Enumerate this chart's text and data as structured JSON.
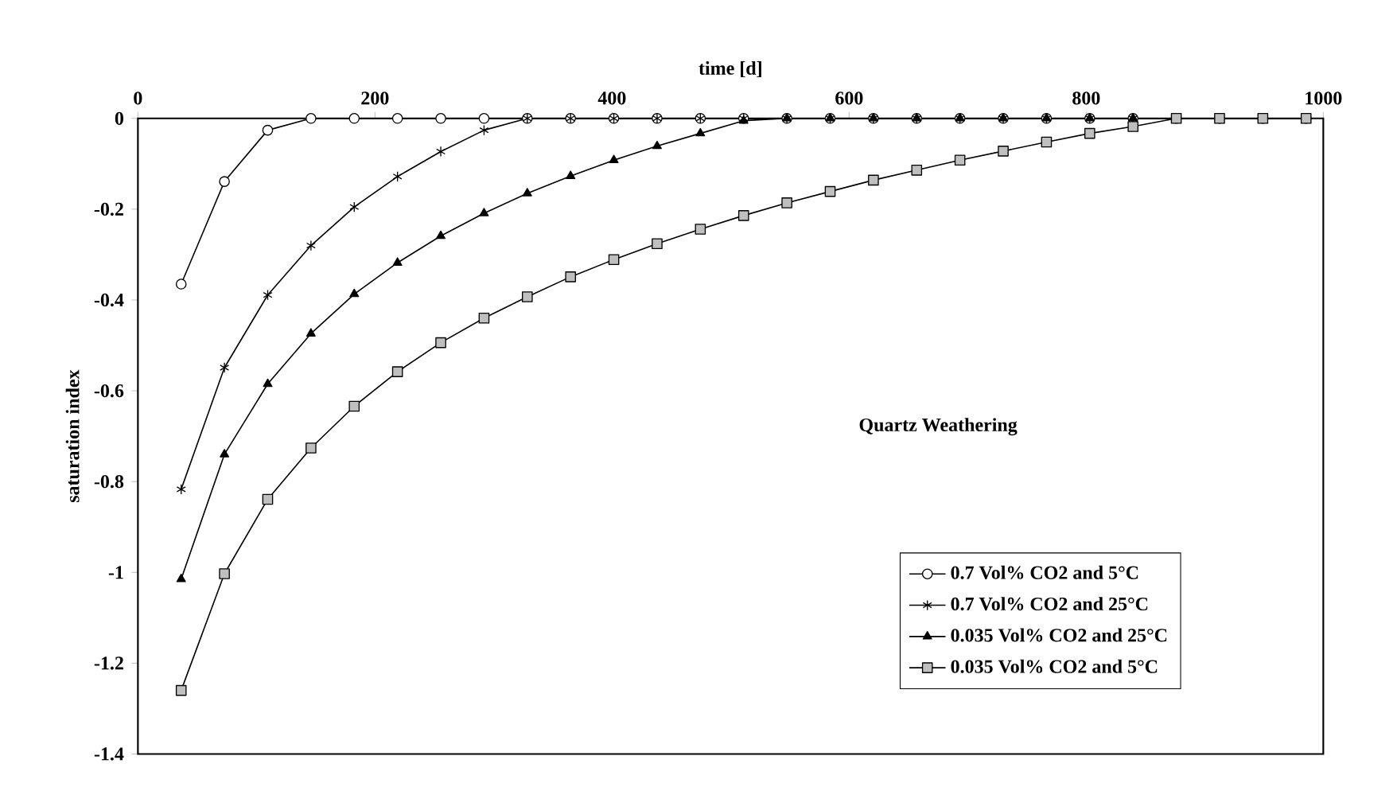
{
  "chart_data": {
    "type": "line",
    "xlabel": "time [d]",
    "ylabel": "saturation index",
    "annotations": [
      "Quartz Weathering"
    ],
    "x": [
      36.5,
      73,
      109.5,
      146,
      182.5,
      219,
      255.5,
      292,
      328.5,
      365,
      401.5,
      438,
      474.5,
      511,
      547.5,
      584,
      620.5,
      657,
      693.5,
      730,
      766.5,
      803,
      839.5,
      876,
      912.5,
      949,
      985.5
    ],
    "series": [
      {
        "name": "0.7 Vol% CO2 and 5°C",
        "color": "#000000",
        "marker": "circle",
        "values": [
          -0.365,
          -0.139,
          -0.026,
          0,
          0,
          0,
          0,
          0,
          0,
          0,
          0,
          0,
          0,
          0,
          0,
          0,
          0,
          0,
          0,
          0,
          0,
          0,
          0,
          0,
          0,
          0,
          0
        ]
      },
      {
        "name": "0.7 Vol% CO2 and 25°C",
        "color": "#000000",
        "marker": "cross",
        "values": [
          -0.817,
          -0.549,
          -0.389,
          -0.28,
          -0.195,
          -0.128,
          -0.073,
          -0.026,
          0,
          0,
          0,
          0,
          0,
          0,
          0,
          0,
          0,
          0,
          0,
          0,
          0,
          0,
          0,
          0,
          0,
          0,
          0
        ]
      },
      {
        "name": "0.035 Vol% CO2 and 25°C",
        "color": "#000000",
        "marker": "triangle",
        "values": [
          -1.015,
          -0.74,
          -0.585,
          -0.474,
          -0.387,
          -0.318,
          -0.259,
          -0.209,
          -0.165,
          -0.127,
          -0.092,
          -0.061,
          -0.033,
          -0.005,
          0,
          0,
          0,
          0,
          0,
          0,
          0,
          0,
          0,
          0,
          0,
          0,
          0
        ]
      },
      {
        "name": "0.035 Vol% CO2 and 5°C",
        "color": "#000000",
        "marker": "square",
        "values": [
          -1.26,
          -1.003,
          -0.839,
          -0.726,
          -0.634,
          -0.558,
          -0.494,
          -0.44,
          -0.393,
          -0.349,
          -0.311,
          -0.276,
          -0.244,
          -0.214,
          -0.186,
          -0.161,
          -0.136,
          -0.114,
          -0.092,
          -0.072,
          -0.052,
          -0.033,
          -0.018,
          0,
          0,
          0,
          0
        ]
      }
    ],
    "xlim": [
      0,
      1000
    ],
    "xticks": [
      0,
      200,
      400,
      600,
      800,
      1000
    ],
    "ylim": [
      -1.4,
      0
    ],
    "yticks": [
      -1.4,
      -1.2,
      -1,
      -0.8,
      -0.6,
      -0.4,
      -0.2,
      0
    ],
    "legend": "bottom right",
    "grid": false,
    "line_style": "solid"
  }
}
